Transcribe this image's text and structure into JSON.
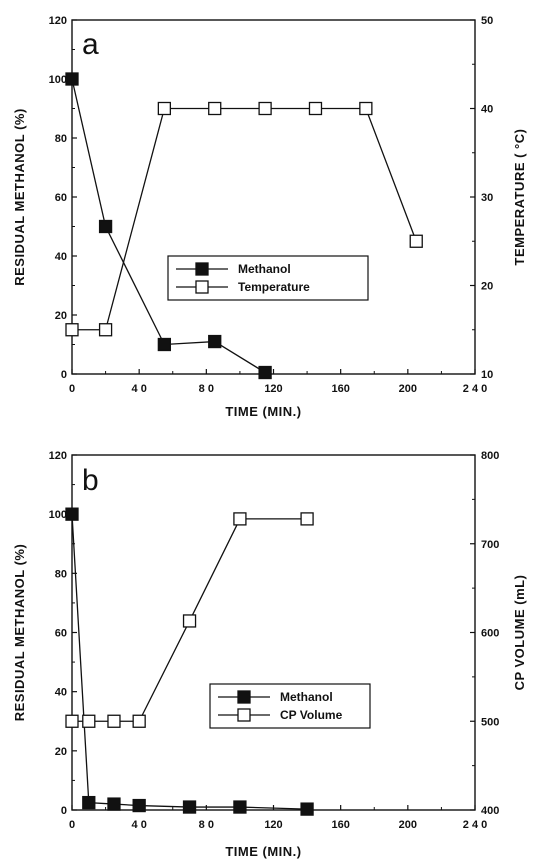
{
  "chart_data": [
    {
      "type": "line",
      "panel_label": "a",
      "xlabel": "TIME  (MIN.)",
      "ylabel": "RESIDUAL  METHANOL  (%)",
      "y2label": "TEMPERATURE  ( °C)",
      "xlim": [
        0,
        240
      ],
      "ylim": [
        0,
        120
      ],
      "y2lim": [
        10,
        50
      ],
      "xticks": [
        "0",
        "4 0",
        "8 0",
        "120",
        "160",
        "200",
        "2 4 0"
      ],
      "yticks": [
        "0",
        "20",
        "40",
        "60",
        "80",
        "100",
        "120"
      ],
      "y2ticks": [
        "10",
        "20",
        "30",
        "40",
        "50"
      ],
      "grid": false,
      "legend_position": "center",
      "series": [
        {
          "name": "Methanol",
          "axis": "left",
          "marker": "filled-square",
          "x": [
            0,
            20,
            55,
            85,
            115
          ],
          "y": [
            100,
            50,
            10,
            11,
            0.5
          ]
        },
        {
          "name": "Temperature",
          "axis": "right",
          "marker": "open-square",
          "x": [
            0,
            20,
            55,
            85,
            115,
            145,
            175,
            205
          ],
          "y": [
            15,
            15,
            40,
            40,
            40,
            40,
            40,
            25
          ]
        }
      ]
    },
    {
      "type": "line",
      "panel_label": "b",
      "xlabel": "TIME  (MIN.)",
      "ylabel": "RESIDUAL  METHANOL  (%)",
      "y2label": "CP  VOLUME  (mL)",
      "xlim": [
        0,
        240
      ],
      "ylim": [
        0,
        120
      ],
      "y2lim": [
        400,
        800
      ],
      "xticks": [
        "0",
        "4 0",
        "8 0",
        "120",
        "160",
        "200",
        "2 4 0"
      ],
      "yticks": [
        "0",
        "20",
        "40",
        "60",
        "80",
        "100",
        "120"
      ],
      "y2ticks": [
        "400",
        "500",
        "600",
        "700",
        "800"
      ],
      "grid": false,
      "legend_position": "center-right",
      "series": [
        {
          "name": "Methanol",
          "axis": "left",
          "marker": "filled-square",
          "x": [
            0,
            10,
            25,
            40,
            70,
            100,
            140
          ],
          "y": [
            100,
            2.5,
            2,
            1.5,
            1,
            1,
            0.3
          ]
        },
        {
          "name": "CP Volume",
          "axis": "right",
          "marker": "open-square",
          "x": [
            0,
            10,
            25,
            40,
            70,
            100,
            140
          ],
          "y": [
            500,
            500,
            500,
            500,
            613,
            728,
            728
          ]
        }
      ]
    }
  ]
}
